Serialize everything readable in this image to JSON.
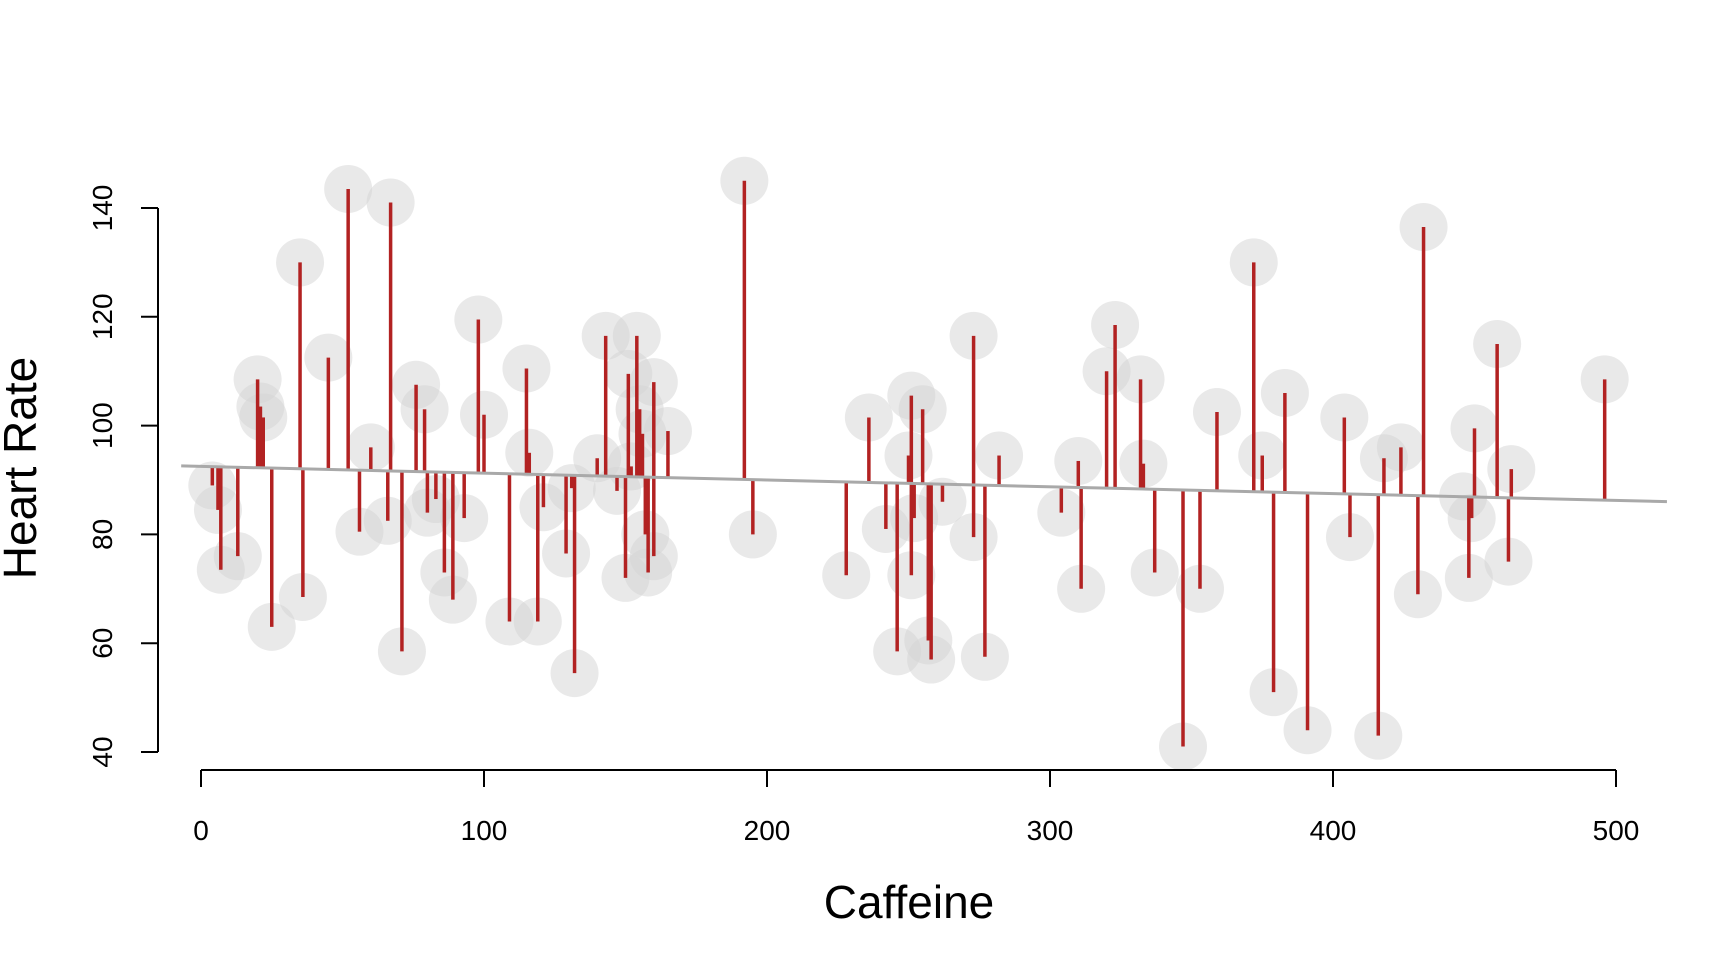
{
  "chart_data": {
    "type": "scatter",
    "title": "",
    "xlabel": "Caffeine",
    "ylabel": "Heart Rate",
    "xlim": [
      0,
      500
    ],
    "ylim": [
      40,
      140
    ],
    "x_ticks": [
      "0",
      "100",
      "200",
      "300",
      "400",
      "500"
    ],
    "y_ticks": [
      "40",
      "60",
      "80",
      "100",
      "120",
      "140"
    ],
    "grid": false,
    "legend": "none",
    "colors": {
      "point": "#d3d3d3",
      "residual": "#b22222",
      "fit_line": "#a9a9a9",
      "axis": "#000000"
    },
    "regression_line": {
      "intercept": 92.5,
      "slope": -0.0125
    },
    "points": [
      {
        "x": 4,
        "y": 89
      },
      {
        "x": 6,
        "y": 84.5
      },
      {
        "x": 7,
        "y": 73.5
      },
      {
        "x": 13,
        "y": 76
      },
      {
        "x": 20,
        "y": 108.5
      },
      {
        "x": 21,
        "y": 103.5
      },
      {
        "x": 22,
        "y": 101.5
      },
      {
        "x": 25,
        "y": 63
      },
      {
        "x": 35,
        "y": 130
      },
      {
        "x": 36,
        "y": 68.5
      },
      {
        "x": 45,
        "y": 112.5
      },
      {
        "x": 52,
        "y": 143.5
      },
      {
        "x": 56,
        "y": 80.5
      },
      {
        "x": 60,
        "y": 96
      },
      {
        "x": 66,
        "y": 82.5
      },
      {
        "x": 67,
        "y": 141
      },
      {
        "x": 71,
        "y": 58.5
      },
      {
        "x": 76,
        "y": 107.5
      },
      {
        "x": 79,
        "y": 103
      },
      {
        "x": 80,
        "y": 84
      },
      {
        "x": 83,
        "y": 86.5
      },
      {
        "x": 86,
        "y": 73
      },
      {
        "x": 89,
        "y": 68
      },
      {
        "x": 93,
        "y": 83
      },
      {
        "x": 98,
        "y": 119.5
      },
      {
        "x": 100,
        "y": 102
      },
      {
        "x": 109,
        "y": 64
      },
      {
        "x": 115,
        "y": 110.5
      },
      {
        "x": 116,
        "y": 95
      },
      {
        "x": 119,
        "y": 64
      },
      {
        "x": 121,
        "y": 85
      },
      {
        "x": 129,
        "y": 76.5
      },
      {
        "x": 131,
        "y": 88.5
      },
      {
        "x": 132,
        "y": 54.5
      },
      {
        "x": 140,
        "y": 94
      },
      {
        "x": 143,
        "y": 116.5
      },
      {
        "x": 147,
        "y": 88
      },
      {
        "x": 150,
        "y": 72
      },
      {
        "x": 151,
        "y": 109.5
      },
      {
        "x": 152,
        "y": 92.5
      },
      {
        "x": 154,
        "y": 116.5
      },
      {
        "x": 155,
        "y": 103
      },
      {
        "x": 156,
        "y": 98.5
      },
      {
        "x": 157,
        "y": 80
      },
      {
        "x": 158,
        "y": 73
      },
      {
        "x": 160,
        "y": 108
      },
      {
        "x": 160,
        "y": 76
      },
      {
        "x": 165,
        "y": 99
      }
    ],
    "points_2": [
      {
        "x": 192,
        "y": 145
      },
      {
        "x": 195,
        "y": 80
      },
      {
        "x": 228,
        "y": 72.5
      },
      {
        "x": 236,
        "y": 101.5
      },
      {
        "x": 242,
        "y": 81
      },
      {
        "x": 246,
        "y": 58.5
      },
      {
        "x": 251,
        "y": 105.5
      },
      {
        "x": 250,
        "y": 94.5
      },
      {
        "x": 252,
        "y": 83
      },
      {
        "x": 251,
        "y": 72.5
      },
      {
        "x": 255,
        "y": 103
      },
      {
        "x": 257,
        "y": 60.5
      },
      {
        "x": 258,
        "y": 57
      },
      {
        "x": 262,
        "y": 86
      },
      {
        "x": 273,
        "y": 116.5
      },
      {
        "x": 273,
        "y": 79.5
      },
      {
        "x": 277,
        "y": 57.5
      },
      {
        "x": 282,
        "y": 94.5
      },
      {
        "x": 304,
        "y": 84
      },
      {
        "x": 310,
        "y": 93.5
      },
      {
        "x": 311,
        "y": 70
      },
      {
        "x": 320,
        "y": 110
      },
      {
        "x": 323,
        "y": 118.5
      },
      {
        "x": 332,
        "y": 108.5
      },
      {
        "x": 333,
        "y": 93
      },
      {
        "x": 337,
        "y": 73
      },
      {
        "x": 347,
        "y": 41
      },
      {
        "x": 353,
        "y": 70
      },
      {
        "x": 359,
        "y": 102.5
      },
      {
        "x": 372,
        "y": 130
      },
      {
        "x": 375,
        "y": 94.5
      },
      {
        "x": 379,
        "y": 51
      },
      {
        "x": 383,
        "y": 106
      },
      {
        "x": 391,
        "y": 44
      },
      {
        "x": 404,
        "y": 101.5
      },
      {
        "x": 406,
        "y": 79.5
      },
      {
        "x": 416,
        "y": 43
      },
      {
        "x": 418,
        "y": 94
      },
      {
        "x": 424,
        "y": 96
      },
      {
        "x": 430,
        "y": 69
      },
      {
        "x": 432,
        "y": 136.5
      },
      {
        "x": 446,
        "y": 87
      },
      {
        "x": 448,
        "y": 72
      },
      {
        "x": 450,
        "y": 99.5
      },
      {
        "x": 449,
        "y": 83
      },
      {
        "x": 458,
        "y": 115
      },
      {
        "x": 462,
        "y": 75
      },
      {
        "x": 463,
        "y": 92
      },
      {
        "x": 496,
        "y": 108.5
      }
    ]
  }
}
